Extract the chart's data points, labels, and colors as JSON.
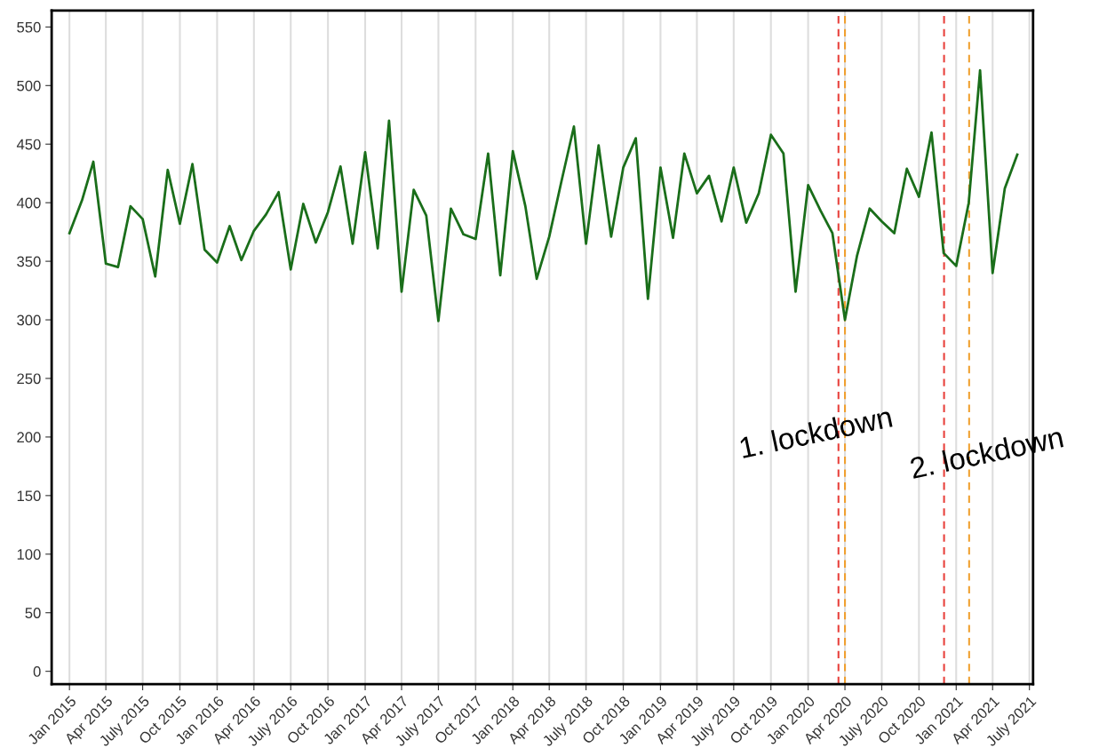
{
  "chart_data": {
    "type": "line",
    "x": [
      "2015-01",
      "2015-02",
      "2015-03",
      "2015-04",
      "2015-05",
      "2015-06",
      "2015-07",
      "2015-08",
      "2015-09",
      "2015-10",
      "2015-11",
      "2015-12",
      "2016-01",
      "2016-02",
      "2016-03",
      "2016-04",
      "2016-05",
      "2016-06",
      "2016-07",
      "2016-08",
      "2016-09",
      "2016-10",
      "2016-11",
      "2016-12",
      "2017-01",
      "2017-02",
      "2017-03",
      "2017-04",
      "2017-05",
      "2017-06",
      "2017-07",
      "2017-08",
      "2017-09",
      "2017-10",
      "2017-11",
      "2017-12",
      "2018-01",
      "2018-02",
      "2018-03",
      "2018-04",
      "2018-05",
      "2018-06",
      "2018-07",
      "2018-08",
      "2018-09",
      "2018-10",
      "2018-11",
      "2018-12",
      "2019-01",
      "2019-02",
      "2019-03",
      "2019-04",
      "2019-05",
      "2019-06",
      "2019-07",
      "2019-08",
      "2019-09",
      "2019-10",
      "2019-11",
      "2019-12",
      "2020-01",
      "2020-02",
      "2020-03",
      "2020-04",
      "2020-05",
      "2020-06",
      "2020-07",
      "2020-08",
      "2020-09",
      "2020-10",
      "2020-11",
      "2020-12",
      "2021-01",
      "2021-02",
      "2021-03",
      "2021-04",
      "2021-05",
      "2021-06"
    ],
    "series": [
      {
        "color": "#1a6e1a",
        "values": [
          374,
          402,
          435,
          348,
          345,
          397,
          386,
          337,
          428,
          382,
          433,
          360,
          349,
          380,
          351,
          376,
          390,
          409,
          343,
          399,
          366,
          392,
          431,
          365,
          443,
          361,
          470,
          324,
          411,
          389,
          299,
          395,
          373,
          369,
          442,
          338,
          444,
          397,
          335,
          371,
          418,
          465,
          365,
          449,
          371,
          430,
          455,
          318,
          430,
          370,
          442,
          408,
          423,
          384,
          430,
          383,
          408,
          458,
          442,
          324,
          415,
          393,
          374,
          300,
          355,
          395,
          384,
          374,
          429,
          405,
          460,
          357,
          346,
          400,
          513,
          340,
          412,
          441
        ]
      }
    ],
    "xlim": [
      "2014-11-18",
      "2021-07-10"
    ],
    "xticks": [
      {
        "value": "2015-01",
        "label": "Jan 2015"
      },
      {
        "value": "2015-04",
        "label": "Apr 2015"
      },
      {
        "value": "2015-07",
        "label": "July 2015"
      },
      {
        "value": "2015-10",
        "label": "Oct 2015"
      },
      {
        "value": "2016-01",
        "label": "Jan 2016"
      },
      {
        "value": "2016-04",
        "label": "Apr 2016"
      },
      {
        "value": "2016-07",
        "label": "July 2016"
      },
      {
        "value": "2016-10",
        "label": "Oct 2016"
      },
      {
        "value": "2017-01",
        "label": "Jan 2017"
      },
      {
        "value": "2017-04",
        "label": "Apr 2017"
      },
      {
        "value": "2017-07",
        "label": "July 2017"
      },
      {
        "value": "2017-10",
        "label": "Oct 2017"
      },
      {
        "value": "2018-01",
        "label": "Jan 2018"
      },
      {
        "value": "2018-04",
        "label": "Apr 2018"
      },
      {
        "value": "2018-07",
        "label": "July 2018"
      },
      {
        "value": "2018-10",
        "label": "Oct 2018"
      },
      {
        "value": "2019-01",
        "label": "Jan 2019"
      },
      {
        "value": "2019-04",
        "label": "Apr 2019"
      },
      {
        "value": "2019-07",
        "label": "July 2019"
      },
      {
        "value": "2019-10",
        "label": "Oct 2019"
      },
      {
        "value": "2020-01",
        "label": "Jan 2020"
      },
      {
        "value": "2020-04",
        "label": "Apr 2020"
      },
      {
        "value": "2020-07",
        "label": "July 2020"
      },
      {
        "value": "2020-10",
        "label": "Oct 2020"
      },
      {
        "value": "2021-01",
        "label": "Jan 2021"
      },
      {
        "value": "2021-04",
        "label": "Apr 2021"
      },
      {
        "value": "2021-07",
        "label": "July 2021"
      }
    ],
    "ylim": [
      -11,
      564
    ],
    "yticks": [
      0,
      50,
      100,
      150,
      200,
      250,
      300,
      350,
      400,
      450,
      500,
      550
    ],
    "grid": "x",
    "marker": "none",
    "line_style": "solid",
    "ref_lines": [
      {
        "axis": "x",
        "value": "2020-03-16",
        "label": "1. lockdown",
        "color": "#e8413c",
        "line_style": "dashed"
      },
      {
        "axis": "x",
        "value": "2020-04-01",
        "color": "#f0a030",
        "line_style": "dashed"
      },
      {
        "axis": "x",
        "value": "2020-12-02",
        "label": "2. lockdown",
        "color": "#e8413c",
        "line_style": "dashed"
      },
      {
        "axis": "x",
        "value": "2021-02-02",
        "color": "#f0a030",
        "line_style": "dashed"
      }
    ]
  }
}
